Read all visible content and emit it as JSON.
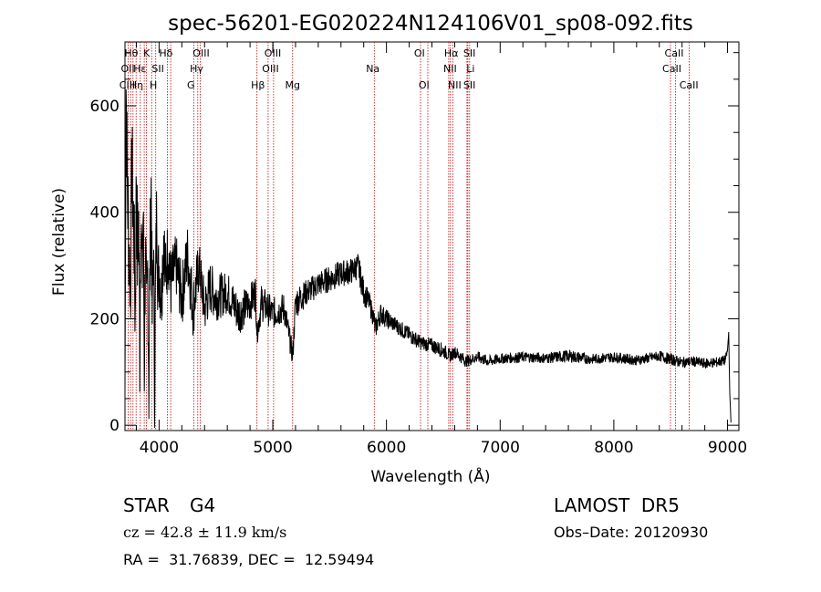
{
  "chart_data": {
    "type": "line",
    "title": "spec-56201-EG020224N124106V01_sp08-092.fits",
    "xlabel": "Wavelength (Å)",
    "ylabel": "Flux (relative)",
    "xlim": [
      3700,
      9100
    ],
    "ylim": [
      -10,
      720
    ],
    "xticks": [
      4000,
      5000,
      6000,
      7000,
      8000,
      9000
    ],
    "yticks": [
      0,
      200,
      400,
      600
    ],
    "grid": false,
    "series": [
      {
        "x": [
          3700,
          3710,
          3720,
          3730,
          3740,
          3750,
          3760,
          3770,
          3780,
          3790,
          3800,
          3810,
          3820,
          3830,
          3840,
          3850,
          3860,
          3870,
          3880,
          3890,
          3900,
          3910,
          3920,
          3930,
          3940,
          3950,
          3960,
          3970,
          3980,
          3990,
          4000,
          4020,
          4040,
          4060,
          4080,
          4100,
          4150,
          4200,
          4250,
          4300,
          4350,
          4400,
          4450,
          4500,
          4600,
          4700,
          4800,
          4850,
          4861,
          4900,
          5000,
          5100,
          5175,
          5200,
          5300,
          5400,
          5500,
          5600,
          5700,
          5750,
          5800,
          5850,
          5890,
          5900,
          5950,
          6000,
          6100,
          6200,
          6300,
          6400,
          6500,
          6563,
          6600,
          6700,
          6800,
          6900,
          7000,
          7200,
          7400,
          7600,
          7800,
          8000,
          8200,
          8400,
          8500,
          8600,
          8700,
          8800,
          8900,
          8980,
          9000,
          9010,
          9020,
          9030
        ],
        "y": [
          60,
          640,
          460,
          380,
          300,
          260,
          500,
          420,
          350,
          200,
          480,
          320,
          380,
          150,
          420,
          260,
          400,
          120,
          340,
          180,
          300,
          80,
          300,
          450,
          200,
          330,
          100,
          280,
          420,
          260,
          300,
          240,
          360,
          270,
          340,
          260,
          300,
          240,
          320,
          220,
          300,
          220,
          260,
          240,
          250,
          210,
          230,
          250,
          170,
          230,
          210,
          220,
          130,
          230,
          250,
          265,
          275,
          285,
          290,
          300,
          250,
          230,
          200,
          180,
          210,
          200,
          185,
          170,
          155,
          150,
          140,
          130,
          138,
          120,
          128,
          120,
          125,
          128,
          126,
          130,
          124,
          128,
          122,
          130,
          124,
          118,
          120,
          116,
          118,
          122,
          140,
          175,
          60,
          5
        ],
        "noise": [
          0,
          80,
          120,
          120,
          100,
          90,
          110,
          110,
          100,
          120,
          100,
          110,
          110,
          120,
          100,
          110,
          100,
          120,
          100,
          100,
          90,
          120,
          100,
          90,
          110,
          90,
          120,
          90,
          80,
          90,
          80,
          80,
          80,
          70,
          70,
          70,
          60,
          60,
          60,
          60,
          50,
          50,
          50,
          45,
          40,
          40,
          35,
          35,
          20,
          35,
          30,
          30,
          20,
          30,
          25,
          25,
          25,
          25,
          25,
          25,
          25,
          20,
          20,
          20,
          20,
          18,
          15,
          15,
          14,
          14,
          14,
          12,
          12,
          11,
          11,
          11,
          10,
          10,
          10,
          12,
          10,
          10,
          10,
          10,
          11,
          10,
          10,
          10,
          10,
          10,
          5,
          2,
          2,
          0
        ]
      }
    ],
    "lines": {
      "top": [
        "Hθ",
        "K",
        "Hδ",
        "OIII",
        "OIII",
        "OI",
        "Hα",
        "SII",
        "CaII"
      ],
      "middle": [
        "OII",
        "Hε",
        "SII",
        "Hγ",
        "OIII",
        "Na",
        "NII",
        "Li",
        "CaII"
      ],
      "bottom": [
        "CIII",
        "Hη",
        "H",
        "G",
        "Hβ",
        "Mg",
        "OI",
        "NII",
        "SII",
        "CaII"
      ]
    },
    "line_wavelengths": [
      3727,
      3750,
      3771,
      3798,
      3835,
      3869,
      3889,
      3934,
      3970,
      4072,
      4102,
      4305,
      4340,
      4363,
      4861,
      4959,
      5007,
      5175,
      5893,
      6300,
      6364,
      6548,
      6563,
      6583,
      6708,
      6716,
      6731,
      8498,
      8542,
      8662
    ]
  },
  "info": {
    "class_label": "STAR",
    "subclass": "G4",
    "survey": "LAMOST  DR5",
    "redshift_text": "cz = 42.8 ± 11.9 km/s",
    "obs_date_text": "Obs–Date: 20120930",
    "coords_text": "RA =  31.76839, DEC =  12.59494"
  }
}
